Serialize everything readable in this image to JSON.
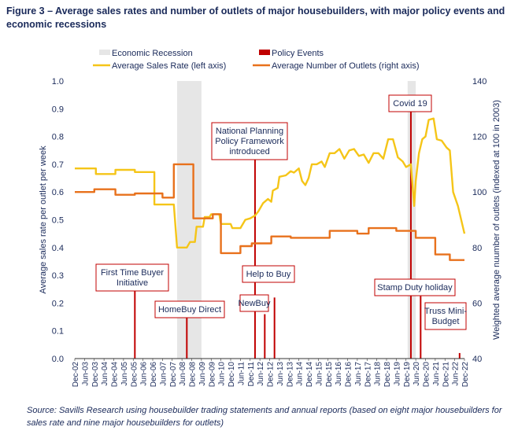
{
  "figure_title": "Figure 3 – Average sales rates and number of outlets of major housebuilders, with major policy events and economic recessions",
  "source_note": "Source: Savills Research using housebuilder trading statements and annual reports (based on eight major housebuilders for sales rate and nine major housebuilders for outlets)",
  "colors": {
    "sales_rate": "#f5c518",
    "outlets": "#e8711c",
    "policy": "#c00000",
    "recession": "#e6e6e6",
    "text": "#1a2a5a",
    "axis": "#333333"
  },
  "chart_data": {
    "type": "line",
    "title": "Average sales rates and number of outlets of major housebuilders, with major policy events and economic recessions",
    "legend": [
      {
        "label": "Economic Recession",
        "kind": "band",
        "color": "#e6e6e6"
      },
      {
        "label": "Policy Events",
        "kind": "bar",
        "color": "#c00000"
      },
      {
        "label": "Average Sales Rate (left axis)",
        "kind": "line",
        "color": "#f5c518"
      },
      {
        "label": "Average Number of Outlets (right axis)",
        "kind": "line",
        "color": "#e8711c"
      }
    ],
    "legend_placement": "top",
    "ylabel_left": "Average sales rate per outlet per week",
    "ylabel_right": "Weighted average nuumber of outlets (indexed at 100 in 2003)",
    "ylim_left": [
      0,
      1.0
    ],
    "ylim_right": [
      40,
      140
    ],
    "left_ticks": [
      "0.0",
      "0.1",
      "0.2",
      "0.3",
      "0.4",
      "0.5",
      "0.6",
      "0.7",
      "0.8",
      "0.9",
      "1.0"
    ],
    "right_ticks": [
      "40",
      "60",
      "80",
      "100",
      "120",
      "140"
    ],
    "x_ticks": [
      "Dec-02",
      "Jun-03",
      "Dec-03",
      "Jun-04",
      "Dec-04",
      "Jun-05",
      "Dec-05",
      "Jun-06",
      "Dec-06",
      "Jun-07",
      "Dec-07",
      "Jun-08",
      "Dec-08",
      "Jun-09",
      "Dec-09",
      "Jun-10",
      "Dec-10",
      "Jun-11",
      "Dec-11",
      "Jun-12",
      "Dec-12",
      "Jun-13",
      "Dec-13",
      "Jun-14",
      "Dec-14",
      "Jun-15",
      "Dec-15",
      "Jun-16",
      "Dec-16",
      "Jun-17",
      "Dec-17",
      "Jun-18",
      "Dec-18",
      "Jun-19",
      "Dec-19",
      "Jun-20",
      "Dec-20",
      "Jun-21",
      "Dec-21",
      "Jun-22",
      "Dec-22"
    ],
    "x_range": [
      "2002-12",
      "2022-12"
    ],
    "grid": false,
    "recessions": [
      {
        "start": "2008-03",
        "end": "2009-06"
      },
      {
        "start": "2020-01",
        "end": "2020-06"
      }
    ],
    "series": [
      {
        "name": "Average Sales Rate (left axis)",
        "axis": "left",
        "points": [
          [
            "2002-12",
            0.685
          ],
          [
            "2004-01",
            0.685
          ],
          [
            "2004-01",
            0.665
          ],
          [
            "2005-01",
            0.665
          ],
          [
            "2005-01",
            0.68
          ],
          [
            "2006-01",
            0.68
          ],
          [
            "2006-01",
            0.672
          ],
          [
            "2007-01",
            0.672
          ],
          [
            "2007-01",
            0.555
          ],
          [
            "2008-01",
            0.555
          ],
          [
            "2008-03",
            0.4
          ],
          [
            "2008-09",
            0.4
          ],
          [
            "2008-11",
            0.42
          ],
          [
            "2009-02",
            0.42
          ],
          [
            "2009-03",
            0.475
          ],
          [
            "2009-07",
            0.475
          ],
          [
            "2009-08",
            0.51
          ],
          [
            "2009-11",
            0.51
          ],
          [
            "2009-12",
            0.52
          ],
          [
            "2010-05",
            0.52
          ],
          [
            "2010-06",
            0.485
          ],
          [
            "2010-12",
            0.485
          ],
          [
            "2011-01",
            0.47
          ],
          [
            "2011-06",
            0.47
          ],
          [
            "2011-09",
            0.5
          ],
          [
            "2011-12",
            0.505
          ],
          [
            "2012-03",
            0.515
          ],
          [
            "2012-05",
            0.53
          ],
          [
            "2012-08",
            0.56
          ],
          [
            "2012-11",
            0.575
          ],
          [
            "2013-01",
            0.565
          ],
          [
            "2013-02",
            0.605
          ],
          [
            "2013-05",
            0.615
          ],
          [
            "2013-06",
            0.655
          ],
          [
            "2013-10",
            0.66
          ],
          [
            "2014-01",
            0.675
          ],
          [
            "2014-03",
            0.67
          ],
          [
            "2014-06",
            0.685
          ],
          [
            "2014-08",
            0.64
          ],
          [
            "2014-10",
            0.625
          ],
          [
            "2014-12",
            0.65
          ],
          [
            "2015-02",
            0.7
          ],
          [
            "2015-05",
            0.7
          ],
          [
            "2015-08",
            0.71
          ],
          [
            "2015-10",
            0.69
          ],
          [
            "2016-01",
            0.74
          ],
          [
            "2016-04",
            0.74
          ],
          [
            "2016-07",
            0.755
          ],
          [
            "2016-10",
            0.72
          ],
          [
            "2017-01",
            0.75
          ],
          [
            "2017-04",
            0.755
          ],
          [
            "2017-07",
            0.73
          ],
          [
            "2017-10",
            0.735
          ],
          [
            "2018-01",
            0.705
          ],
          [
            "2018-04",
            0.74
          ],
          [
            "2018-07",
            0.74
          ],
          [
            "2018-10",
            0.72
          ],
          [
            "2019-01",
            0.79
          ],
          [
            "2019-04",
            0.79
          ],
          [
            "2019-07",
            0.725
          ],
          [
            "2019-10",
            0.71
          ],
          [
            "2019-12",
            0.69
          ],
          [
            "2020-03",
            0.7
          ],
          [
            "2020-05",
            0.55
          ],
          [
            "2020-06",
            0.64
          ],
          [
            "2020-08",
            0.74
          ],
          [
            "2020-10",
            0.79
          ],
          [
            "2020-12",
            0.8
          ],
          [
            "2021-02",
            0.86
          ],
          [
            "2021-05",
            0.865
          ],
          [
            "2021-07",
            0.79
          ],
          [
            "2021-10",
            0.785
          ],
          [
            "2022-01",
            0.76
          ],
          [
            "2022-03",
            0.75
          ],
          [
            "2022-05",
            0.6
          ],
          [
            "2022-08",
            0.55
          ],
          [
            "2022-12",
            0.45
          ]
        ]
      },
      {
        "name": "Average Number of Outlets (right axis)",
        "axis": "right",
        "points": [
          [
            "2002-12",
            100
          ],
          [
            "2003-12",
            100
          ],
          [
            "2003-12",
            101
          ],
          [
            "2005-01",
            101
          ],
          [
            "2005-01",
            99
          ],
          [
            "2006-01",
            99
          ],
          [
            "2006-01",
            99.5
          ],
          [
            "2007-06",
            99.5
          ],
          [
            "2007-06",
            98
          ],
          [
            "2008-01",
            98
          ],
          [
            "2008-01",
            110
          ],
          [
            "2009-01",
            110
          ],
          [
            "2009-01",
            90.5
          ],
          [
            "2010-01",
            90.5
          ],
          [
            "2010-01",
            92
          ],
          [
            "2010-06",
            92
          ],
          [
            "2010-06",
            78
          ],
          [
            "2011-06",
            78
          ],
          [
            "2011-06",
            80.5
          ],
          [
            "2012-01",
            80.5
          ],
          [
            "2012-01",
            81.5
          ],
          [
            "2013-01",
            81.5
          ],
          [
            "2013-01",
            84
          ],
          [
            "2014-01",
            84
          ],
          [
            "2014-01",
            83.5
          ],
          [
            "2016-01",
            83.5
          ],
          [
            "2016-01",
            86
          ],
          [
            "2017-06",
            86
          ],
          [
            "2017-06",
            85
          ],
          [
            "2018-01",
            85
          ],
          [
            "2018-01",
            87
          ],
          [
            "2019-06",
            87
          ],
          [
            "2019-06",
            86
          ],
          [
            "2020-06",
            86
          ],
          [
            "2020-06",
            83.5
          ],
          [
            "2021-06",
            83.5
          ],
          [
            "2021-06",
            77.5
          ],
          [
            "2022-03",
            77.5
          ],
          [
            "2022-03",
            75.5
          ],
          [
            "2022-12",
            75.5
          ]
        ]
      }
    ],
    "policy_events": [
      {
        "label": "First Time Buyer Initiative",
        "date": "2006-01",
        "height": 0.33
      },
      {
        "label": "HomeBuy Direct",
        "date": "2008-09",
        "height": 0.15
      },
      {
        "label": "National Planning Policy Framework introduced",
        "date": "2012-03",
        "height": 0.73
      },
      {
        "label": "NewBuy",
        "date": "2012-09",
        "height": 0.16
      },
      {
        "label": "Help to Buy",
        "date": "2013-03",
        "height": 0.22
      },
      {
        "label": "Covid 19",
        "date": "2020-03",
        "height": 0.9
      },
      {
        "label": "Stamp Duty holiday",
        "date": "2020-09",
        "height": 0.225
      },
      {
        "label": "Truss Mini-Budget",
        "date": "2022-09",
        "height": 0.02
      }
    ]
  }
}
